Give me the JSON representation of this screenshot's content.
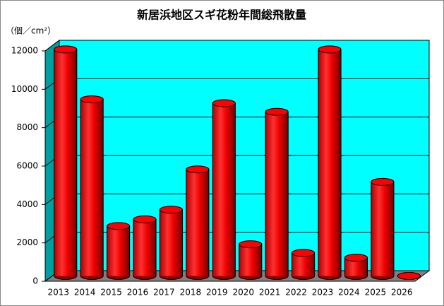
{
  "chart_data": {
    "type": "bar",
    "title": "新居浜地区スギ花粉年間総飛散量",
    "y_label": "（個／cm²）",
    "categories": [
      "2013",
      "2014",
      "2015",
      "2016",
      "2017",
      "2018",
      "2019",
      "2020",
      "2021",
      "2022",
      "2023",
      "2024",
      "2025",
      "2026"
    ],
    "values": [
      11800,
      9200,
      2600,
      2950,
      3450,
      5550,
      9000,
      1650,
      8550,
      1200,
      11800,
      950,
      4900,
      0
    ],
    "color": "#ff0000",
    "ylim": [
      0,
      12000
    ],
    "yticks": [
      0,
      2000,
      4000,
      6000,
      8000,
      10000,
      12000
    ],
    "grid": true
  }
}
